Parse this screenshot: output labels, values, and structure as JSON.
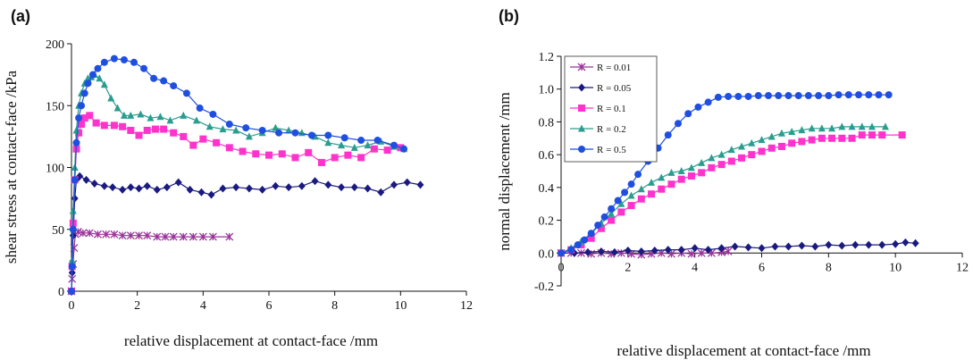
{
  "panels": {
    "a": "(a)",
    "b": "(b)"
  },
  "chart_data": [
    {
      "type": "line",
      "xlabel": "relative displacement at contact-face /mm",
      "ylabel": "shear stress at contact-face /kPa",
      "xlim": [
        0,
        12
      ],
      "ylim": [
        0,
        200
      ],
      "xticks": [
        0,
        2,
        4,
        6,
        8,
        10,
        12
      ],
      "yticks": [
        0,
        50,
        100,
        150,
        200
      ],
      "grid": false,
      "legend": null,
      "series": [
        {
          "name": "R = 0.01",
          "color": "#993399",
          "marker": "star",
          "x": [
            0,
            0.02,
            0.05,
            0.08,
            0.12,
            0.2,
            0.35,
            0.55,
            0.8,
            1.05,
            1.3,
            1.55,
            1.8,
            2.05,
            2.3,
            2.6,
            2.85,
            3.1,
            3.4,
            3.7,
            4.0,
            4.3,
            4.8
          ],
          "y": [
            0,
            10,
            22,
            35,
            46,
            48,
            47,
            47,
            46,
            46,
            46,
            45,
            45,
            45,
            45,
            44,
            44,
            44,
            44,
            44,
            44,
            44,
            44
          ]
        },
        {
          "name": "R = 0.05",
          "color": "#1a1a80",
          "marker": "diamond",
          "x": [
            0,
            0.02,
            0.05,
            0.1,
            0.15,
            0.25,
            0.45,
            0.7,
            1.0,
            1.25,
            1.55,
            1.8,
            2.05,
            2.3,
            2.6,
            2.9,
            3.25,
            3.6,
            3.95,
            4.25,
            4.6,
            5.0,
            5.4,
            5.8,
            6.2,
            6.6,
            7.0,
            7.4,
            7.8,
            8.2,
            8.6,
            9.0,
            9.4,
            9.8,
            10.2,
            10.6
          ],
          "y": [
            0,
            15,
            45,
            75,
            90,
            93,
            90,
            87,
            85,
            84,
            82,
            84,
            83,
            85,
            82,
            84,
            88,
            82,
            80,
            78,
            83,
            84,
            83,
            82,
            85,
            84,
            85,
            89,
            86,
            84,
            84,
            83,
            80,
            86,
            88,
            86
          ]
        },
        {
          "name": "R = 0.1",
          "color": "#ff33cc",
          "marker": "square",
          "x": [
            0,
            0.02,
            0.05,
            0.1,
            0.15,
            0.22,
            0.3,
            0.4,
            0.55,
            0.75,
            1.0,
            1.3,
            1.55,
            1.8,
            2.05,
            2.3,
            2.55,
            2.8,
            3.1,
            3.4,
            3.7,
            4.0,
            4.4,
            4.8,
            5.2,
            5.6,
            6.0,
            6.4,
            6.8,
            7.2,
            7.6,
            8.0,
            8.4,
            8.8,
            9.2,
            9.6,
            10.0
          ],
          "y": [
            0,
            20,
            55,
            90,
            115,
            128,
            135,
            140,
            142,
            136,
            134,
            134,
            133,
            130,
            126,
            130,
            131,
            131,
            128,
            125,
            118,
            123,
            120,
            116,
            113,
            111,
            110,
            111,
            108,
            112,
            104,
            108,
            110,
            108,
            115,
            114,
            116
          ]
        },
        {
          "name": "R = 0.2",
          "color": "#2a9d8f",
          "marker": "triangle",
          "x": [
            0,
            0.02,
            0.05,
            0.1,
            0.15,
            0.22,
            0.3,
            0.4,
            0.5,
            0.6,
            0.7,
            0.85,
            1.0,
            1.2,
            1.4,
            1.6,
            1.8,
            2.1,
            2.4,
            2.7,
            3.0,
            3.4,
            3.8,
            4.2,
            4.6,
            5.0,
            5.4,
            5.8,
            6.2,
            6.6,
            7.0,
            7.4,
            7.8,
            8.2,
            8.6,
            9.0,
            9.4,
            9.8,
            10.1
          ],
          "y": [
            0,
            25,
            65,
            100,
            130,
            150,
            160,
            168,
            172,
            173,
            175,
            172,
            167,
            156,
            148,
            142,
            142,
            143,
            140,
            141,
            138,
            142,
            138,
            133,
            131,
            130,
            125,
            128,
            132,
            130,
            128,
            125,
            120,
            118,
            116,
            118,
            121,
            117,
            115
          ]
        },
        {
          "name": "R = 0.5",
          "color": "#1f4fe0",
          "marker": "circle",
          "x": [
            0,
            0.02,
            0.05,
            0.1,
            0.15,
            0.22,
            0.3,
            0.4,
            0.5,
            0.65,
            0.8,
            1.0,
            1.3,
            1.6,
            1.9,
            2.2,
            2.5,
            2.8,
            3.1,
            3.5,
            3.9,
            4.3,
            4.8,
            5.3,
            5.8,
            6.3,
            6.8,
            7.3,
            7.8,
            8.3,
            8.8,
            9.3,
            9.8,
            10.1
          ],
          "y": [
            0,
            20,
            50,
            90,
            120,
            140,
            150,
            160,
            168,
            175,
            180,
            185,
            188,
            187,
            185,
            180,
            172,
            170,
            166,
            160,
            148,
            143,
            135,
            132,
            130,
            128,
            128,
            126,
            126,
            124,
            122,
            122,
            118,
            115
          ]
        }
      ]
    },
    {
      "type": "line",
      "xlabel": "relative displacement at contact-face /mm",
      "ylabel": "normal displacement /mm",
      "xlim": [
        0,
        12
      ],
      "ylim": [
        -0.2,
        1.2
      ],
      "xticks": [
        0,
        2,
        4,
        6,
        8,
        10,
        12
      ],
      "yticks": [
        -0.2,
        0.0,
        0.2,
        0.4,
        0.6,
        0.8,
        1.0,
        1.2
      ],
      "ytick_labels": [
        "-0.2",
        "0.0",
        "0.2",
        "0.4",
        "0.6",
        "0.8",
        "1.0",
        "1.2"
      ],
      "grid": false,
      "legend": "top-left",
      "series": [
        {
          "name": "R = 0.01",
          "color": "#993399",
          "marker": "star",
          "x": [
            0,
            0.3,
            0.6,
            0.9,
            1.2,
            1.5,
            1.8,
            2.1,
            2.4,
            2.7,
            3.0,
            3.3,
            3.6,
            3.9,
            4.2,
            4.5,
            4.8,
            5.0
          ],
          "y": [
            0.0,
            0.0,
            0.0,
            -0.005,
            0.0,
            -0.005,
            0.0,
            -0.005,
            -0.01,
            -0.005,
            0.0,
            -0.005,
            0.0,
            -0.005,
            0.0,
            0.0,
            0.005,
            0.01
          ]
        },
        {
          "name": "R = 0.05",
          "color": "#1a1a80",
          "marker": "diamond",
          "x": [
            0,
            0.4,
            0.8,
            1.2,
            1.6,
            2.0,
            2.4,
            2.8,
            3.2,
            3.6,
            4.0,
            4.4,
            4.8,
            5.2,
            5.6,
            6.0,
            6.4,
            6.8,
            7.2,
            7.6,
            8.0,
            8.4,
            8.8,
            9.2,
            9.6,
            10.0,
            10.3,
            10.6
          ],
          "y": [
            0.0,
            0.0,
            0.005,
            0.01,
            0.005,
            0.015,
            0.01,
            0.015,
            0.02,
            0.02,
            0.03,
            0.02,
            0.03,
            0.04,
            0.035,
            0.03,
            0.04,
            0.04,
            0.045,
            0.04,
            0.05,
            0.045,
            0.05,
            0.05,
            0.05,
            0.055,
            0.065,
            0.06
          ]
        },
        {
          "name": "R = 0.1",
          "color": "#ff33cc",
          "marker": "square",
          "x": [
            0,
            0.3,
            0.6,
            0.9,
            1.2,
            1.5,
            1.8,
            2.1,
            2.4,
            2.7,
            3.0,
            3.3,
            3.6,
            3.9,
            4.2,
            4.5,
            4.8,
            5.1,
            5.4,
            5.7,
            6.0,
            6.3,
            6.6,
            6.9,
            7.2,
            7.5,
            7.8,
            8.1,
            8.4,
            8.7,
            9.0,
            9.3,
            9.6,
            10.2
          ],
          "y": [
            0.0,
            0.02,
            0.05,
            0.09,
            0.15,
            0.2,
            0.25,
            0.29,
            0.33,
            0.36,
            0.39,
            0.42,
            0.45,
            0.47,
            0.49,
            0.52,
            0.54,
            0.56,
            0.58,
            0.6,
            0.62,
            0.64,
            0.65,
            0.67,
            0.68,
            0.69,
            0.7,
            0.7,
            0.7,
            0.7,
            0.72,
            0.72,
            0.72,
            0.72
          ]
        },
        {
          "name": "R = 0.2",
          "color": "#2a9d8f",
          "marker": "triangle",
          "x": [
            0,
            0.3,
            0.6,
            0.9,
            1.2,
            1.5,
            1.8,
            2.1,
            2.4,
            2.7,
            3.0,
            3.3,
            3.6,
            3.9,
            4.2,
            4.5,
            4.8,
            5.1,
            5.4,
            5.7,
            6.0,
            6.3,
            6.6,
            6.9,
            7.2,
            7.5,
            7.8,
            8.1,
            8.4,
            8.7,
            9.0,
            9.3,
            9.7
          ],
          "y": [
            0.0,
            0.03,
            0.07,
            0.12,
            0.18,
            0.24,
            0.3,
            0.35,
            0.39,
            0.43,
            0.46,
            0.49,
            0.5,
            0.52,
            0.55,
            0.58,
            0.6,
            0.63,
            0.65,
            0.67,
            0.69,
            0.71,
            0.73,
            0.74,
            0.75,
            0.76,
            0.76,
            0.76,
            0.77,
            0.77,
            0.77,
            0.77,
            0.77
          ]
        },
        {
          "name": "R = 0.5",
          "color": "#1f4fe0",
          "marker": "circle",
          "x": [
            0,
            0.3,
            0.5,
            0.7,
            0.9,
            1.1,
            1.3,
            1.5,
            1.7,
            1.9,
            2.1,
            2.3,
            2.6,
            2.9,
            3.2,
            3.5,
            3.8,
            4.1,
            4.4,
            4.7,
            5.0,
            5.3,
            5.6,
            5.9,
            6.2,
            6.5,
            6.8,
            7.1,
            7.4,
            7.7,
            8.0,
            8.3,
            8.6,
            8.9,
            9.2,
            9.5,
            9.8
          ],
          "y": [
            0.0,
            0.02,
            0.05,
            0.08,
            0.12,
            0.17,
            0.22,
            0.27,
            0.32,
            0.37,
            0.42,
            0.48,
            0.56,
            0.64,
            0.72,
            0.79,
            0.85,
            0.89,
            0.92,
            0.95,
            0.955,
            0.955,
            0.955,
            0.96,
            0.96,
            0.96,
            0.96,
            0.96,
            0.96,
            0.96,
            0.96,
            0.965,
            0.965,
            0.965,
            0.965,
            0.965,
            0.965
          ]
        }
      ]
    }
  ]
}
